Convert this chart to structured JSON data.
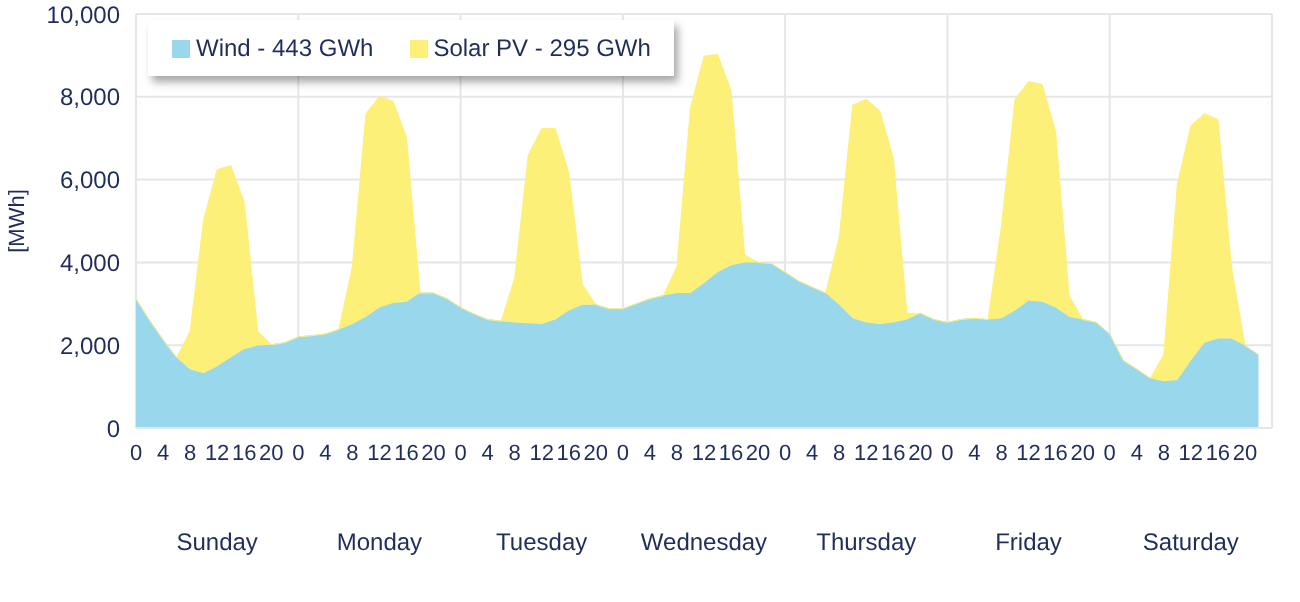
{
  "chart_data": {
    "type": "area",
    "stacked": true,
    "ylabel": "[MWh]",
    "categories": [
      "0",
      null,
      "4",
      null,
      "8",
      null,
      "12",
      null,
      "16",
      null,
      "20",
      null,
      "0",
      null,
      "4",
      null,
      "8",
      null,
      "12",
      null,
      "16",
      null,
      "20",
      null,
      "0",
      null,
      "4",
      null,
      "8",
      null,
      "12",
      null,
      "16",
      null,
      "20",
      null,
      "0",
      null,
      "4",
      null,
      "8",
      null,
      "12",
      null,
      "16",
      null,
      "20",
      null,
      "0",
      null,
      "4",
      null,
      "8",
      null,
      "12",
      null,
      "16",
      null,
      "20",
      null,
      "0",
      null,
      "4",
      null,
      "8",
      null,
      "12",
      null,
      "16",
      null,
      "20",
      null,
      "0",
      null,
      "4",
      null,
      "8",
      null,
      "12",
      null,
      "16",
      null,
      "20",
      null
    ],
    "series": [
      {
        "name": "Wind - 443 GWh",
        "color": "#99d8ec",
        "values": [
          3120,
          2600,
          2130,
          1700,
          1420,
          1320,
          1490,
          1700,
          1910,
          1990,
          2010,
          2060,
          2200,
          2230,
          2270,
          2380,
          2510,
          2690,
          2910,
          3020,
          3050,
          3260,
          3260,
          3120,
          2910,
          2750,
          2620,
          2580,
          2550,
          2530,
          2510,
          2620,
          2840,
          2980,
          2980,
          2880,
          2880,
          3000,
          3120,
          3200,
          3260,
          3260,
          3500,
          3760,
          3930,
          4000,
          4000,
          3970,
          3760,
          3550,
          3400,
          3260,
          2980,
          2650,
          2550,
          2510,
          2550,
          2620,
          2770,
          2620,
          2550,
          2620,
          2650,
          2620,
          2650,
          2840,
          3080,
          3050,
          2910,
          2690,
          2620,
          2550,
          2270,
          1630,
          1420,
          1200,
          1130,
          1160,
          1630,
          2060,
          2160,
          2160,
          1990,
          1770
        ]
      },
      {
        "name": "Solar PV - 295 GWh",
        "color": "#fdf078",
        "values": [
          0,
          0,
          0,
          0,
          920,
          3710,
          4750,
          4640,
          3550,
          350,
          0,
          0,
          0,
          0,
          0,
          0,
          1390,
          4900,
          5100,
          4880,
          3970,
          0,
          0,
          0,
          0,
          0,
          0,
          0,
          1070,
          4060,
          4720,
          4610,
          3330,
          490,
          0,
          0,
          0,
          0,
          0,
          0,
          640,
          4470,
          5480,
          5270,
          4220,
          180,
          0,
          0,
          0,
          0,
          0,
          0,
          1630,
          5150,
          5390,
          5150,
          3970,
          150,
          0,
          0,
          0,
          0,
          0,
          0,
          2240,
          5100,
          5290,
          5250,
          4250,
          500,
          0,
          0,
          0,
          0,
          0,
          0,
          640,
          4720,
          5670,
          5530,
          5290,
          1740,
          0,
          0
        ]
      }
    ],
    "annotations": [
      "Sunday",
      "Monday",
      "Tuesday",
      "Wednesday",
      "Thursday",
      "Friday",
      "Saturday"
    ],
    "ylim": [
      0,
      10000
    ],
    "yticks": [
      0,
      {
        "value": 2000,
        "label": "2,000"
      },
      {
        "value": 4000,
        "label": "4,000"
      },
      {
        "value": 6000,
        "label": "6,000"
      },
      {
        "value": 8000,
        "label": "8,000"
      },
      {
        "value": 10000,
        "label": "10,000"
      }
    ],
    "grid": true,
    "legend": "top left"
  }
}
